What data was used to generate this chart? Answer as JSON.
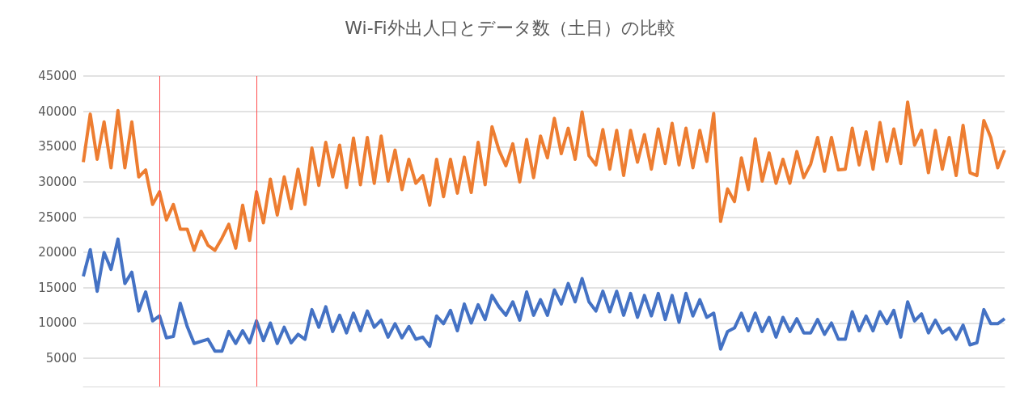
{
  "chart_data": {
    "type": "line",
    "title": "Wi-Fi外出人口とデータ数（土日）の比較",
    "categories": [
      null,
      null,
      null,
      null,
      null,
      null,
      null,
      null,
      null,
      null,
      null,
      null,
      null,
      null,
      null,
      null,
      null,
      null,
      null,
      null,
      null,
      null,
      null,
      null,
      null,
      null,
      null,
      null,
      null,
      null,
      null,
      null,
      null,
      null,
      null,
      null,
      null,
      null,
      null,
      null,
      null,
      null,
      null,
      null,
      null,
      null,
      null,
      null,
      null,
      null,
      null,
      null,
      null,
      null,
      null,
      null,
      null,
      null,
      null,
      null,
      null,
      null,
      null,
      null,
      null,
      null,
      null,
      null,
      null,
      null,
      null,
      null,
      null,
      null,
      null,
      null,
      null,
      null,
      null,
      null,
      null,
      null,
      null,
      null,
      null,
      null,
      null,
      null,
      null,
      null,
      null,
      null,
      null,
      null,
      null,
      null,
      null,
      null,
      null,
      null,
      null,
      null,
      null,
      null,
      null,
      null,
      null,
      null,
      null,
      null,
      null,
      null,
      null,
      null,
      null,
      null,
      null,
      null,
      null,
      null,
      null,
      null,
      null,
      null,
      null,
      null,
      null,
      null,
      null,
      null,
      null,
      null,
      null,
      null
    ],
    "series": [
      {
        "color": "#ed7d31",
        "values": [
          32800,
          39600,
          33200,
          38500,
          32000,
          40100,
          32000,
          38500,
          30700,
          31700,
          26800,
          28600,
          24600,
          26800,
          23300,
          23300,
          20300,
          23000,
          21000,
          20300,
          22000,
          24000,
          20600,
          26700,
          21700,
          28600,
          24200,
          30400,
          25300,
          30700,
          26200,
          31800,
          26800,
          34800,
          29500,
          35600,
          30700,
          35200,
          29200,
          36200,
          29600,
          36300,
          29800,
          36500,
          30100,
          34500,
          28900,
          33200,
          29800,
          30900,
          26700,
          33200,
          27900,
          33200,
          28400,
          33500,
          28500,
          35600,
          29600,
          37800,
          34500,
          32300,
          35400,
          30000,
          36000,
          30600,
          36500,
          33400,
          39000,
          34000,
          37600,
          33200,
          39900,
          33700,
          32400,
          37400,
          31800,
          37300,
          30900,
          37300,
          32800,
          36700,
          31800,
          37500,
          32600,
          38300,
          32400,
          37600,
          32000,
          37300,
          32900,
          39700,
          24400,
          29000,
          27200,
          33400,
          28900,
          36100,
          30100,
          34100,
          29800,
          33200,
          29800,
          34300,
          30600,
          32500,
          36300,
          31500,
          36300,
          31700,
          31800,
          37600,
          32400,
          37100,
          31800,
          38400,
          32900,
          37500,
          32600,
          41300,
          35200,
          37300,
          31300,
          37300,
          31800,
          36300,
          30900,
          38000,
          31300,
          30900,
          38700,
          36300,
          32000,
          34500
        ]
      },
      {
        "color": "#4472c4",
        "values": [
          16600,
          20400,
          14500,
          20000,
          17600,
          21900,
          15600,
          17200,
          11700,
          14400,
          10300,
          11000,
          7900,
          8100,
          12800,
          9500,
          7100,
          7400,
          7700,
          6000,
          6000,
          8800,
          7100,
          8900,
          7200,
          10300,
          7500,
          10000,
          7100,
          9400,
          7200,
          8400,
          7700,
          11900,
          9400,
          12300,
          8800,
          11100,
          8600,
          11400,
          8900,
          11700,
          9400,
          10400,
          8000,
          9900,
          7900,
          9500,
          7700,
          8000,
          6700,
          11000,
          9900,
          11800,
          8900,
          12700,
          10000,
          12600,
          10500,
          13900,
          12300,
          11100,
          13000,
          10400,
          14400,
          11100,
          13300,
          11100,
          14700,
          12700,
          15600,
          13000,
          16300,
          13000,
          11700,
          14500,
          11600,
          14500,
          11100,
          14200,
          10800,
          13900,
          11000,
          14200,
          10500,
          13900,
          10100,
          14200,
          11000,
          13300,
          10800,
          11400,
          6300,
          8800,
          9300,
          11400,
          8900,
          11400,
          8800,
          10800,
          8000,
          10800,
          8800,
          10600,
          8600,
          8600,
          10500,
          8400,
          10000,
          7700,
          7700,
          11600,
          8900,
          11000,
          8900,
          11600,
          9900,
          11800,
          8000,
          13000,
          10300,
          11300,
          8600,
          10400,
          8600,
          9300,
          7700,
          9700,
          6900,
          7200,
          11900,
          9900,
          9900,
          10600
        ]
      }
    ],
    "ylim": [
      1000,
      45000
    ],
    "yticks": [
      5000,
      10000,
      15000,
      20000,
      25000,
      30000,
      35000,
      40000,
      45000
    ],
    "grid": "y",
    "marker": "none",
    "line_style": "solid"
  }
}
